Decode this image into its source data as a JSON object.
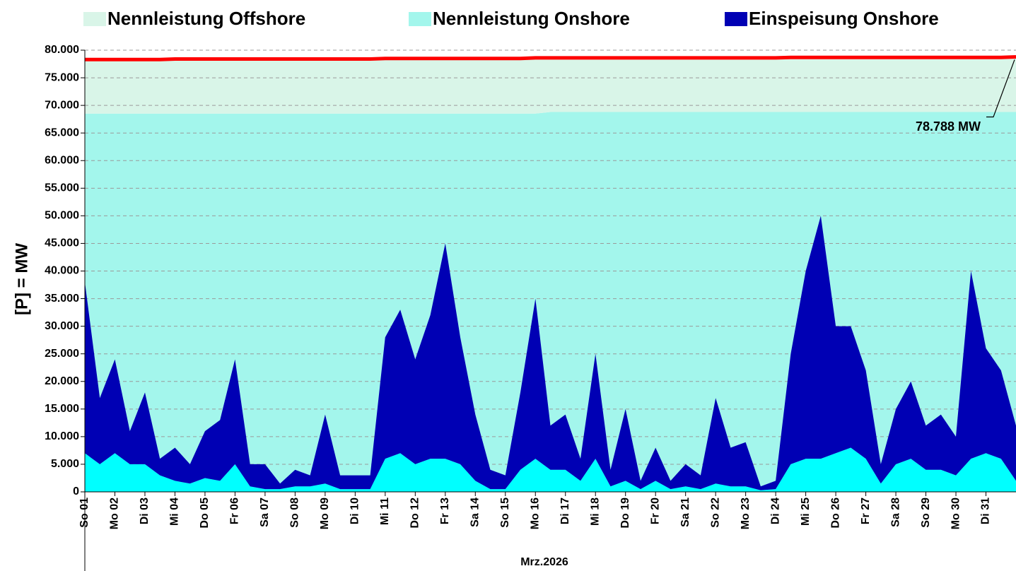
{
  "chart_data": {
    "type": "area",
    "y_label": "[P] = MW",
    "x_label": "Mrz.2026",
    "x": [
      0,
      0.5,
      1,
      1.5,
      2,
      2.5,
      3,
      3.5,
      4,
      4.5,
      5,
      5.5,
      6,
      6.5,
      7,
      7.5,
      8,
      8.5,
      9,
      9.5,
      10,
      10.5,
      11,
      11.5,
      12,
      12.5,
      13,
      13.5,
      14,
      14.5,
      15,
      15.5,
      16,
      16.5,
      17,
      17.5,
      18,
      18.5,
      19,
      19.5,
      20,
      20.5,
      21,
      21.5,
      22,
      22.5,
      23,
      23.5,
      24,
      24.5,
      25,
      25.5,
      26,
      26.5,
      27,
      27.5,
      28,
      28.5,
      29,
      29.5,
      30,
      30.5,
      31
    ],
    "xlim": [
      0,
      31
    ],
    "xticks": [
      {
        "value": 0,
        "label": "So 01"
      },
      {
        "value": 1,
        "label": "Mo 02"
      },
      {
        "value": 2,
        "label": "Di 03"
      },
      {
        "value": 3,
        "label": "Mi 04"
      },
      {
        "value": 4,
        "label": "Do 05"
      },
      {
        "value": 5,
        "label": "Fr 06"
      },
      {
        "value": 6,
        "label": "Sa 07"
      },
      {
        "value": 7,
        "label": "So 08"
      },
      {
        "value": 8,
        "label": "Mo 09"
      },
      {
        "value": 9,
        "label": "Di 10"
      },
      {
        "value": 10,
        "label": "Mi 11"
      },
      {
        "value": 11,
        "label": "Do 12"
      },
      {
        "value": 12,
        "label": "Fr 13"
      },
      {
        "value": 13,
        "label": "Sa 14"
      },
      {
        "value": 14,
        "label": "So 15"
      },
      {
        "value": 15,
        "label": "Mo 16"
      },
      {
        "value": 16,
        "label": "Di 17"
      },
      {
        "value": 17,
        "label": "Mi 18"
      },
      {
        "value": 18,
        "label": "Do 19"
      },
      {
        "value": 19,
        "label": "Fr 20"
      },
      {
        "value": 20,
        "label": "Sa 21"
      },
      {
        "value": 21,
        "label": "So 22"
      },
      {
        "value": 22,
        "label": "Mo 23"
      },
      {
        "value": 23,
        "label": "Di 24"
      },
      {
        "value": 24,
        "label": "Mi 25"
      },
      {
        "value": 25,
        "label": "Do 26"
      },
      {
        "value": 26,
        "label": "Fr 27"
      },
      {
        "value": 27,
        "label": "Sa 28"
      },
      {
        "value": 28,
        "label": "So 29"
      },
      {
        "value": 29,
        "label": "Mo 30"
      },
      {
        "value": 30,
        "label": "Di 31"
      }
    ],
    "ylim": [
      0,
      80000
    ],
    "yticks": [
      0,
      {
        "value": 5000,
        "label": "5.000"
      },
      {
        "value": 10000,
        "label": "10.000"
      },
      {
        "value": 15000,
        "label": "15.000"
      },
      {
        "value": 20000,
        "label": "20.000"
      },
      {
        "value": 25000,
        "label": "25.000"
      },
      {
        "value": 30000,
        "label": "30.000"
      },
      {
        "value": 35000,
        "label": "35.000"
      },
      {
        "value": 40000,
        "label": "40.000"
      },
      {
        "value": 45000,
        "label": "45.000"
      },
      {
        "value": 50000,
        "label": "50.000"
      },
      {
        "value": 55000,
        "label": "55.000"
      },
      {
        "value": 60000,
        "label": "60.000"
      },
      {
        "value": 65000,
        "label": "65.000"
      },
      {
        "value": 70000,
        "label": "70.000"
      },
      {
        "value": 75000,
        "label": "75.000"
      },
      {
        "value": 80000,
        "label": "80.000"
      }
    ],
    "grid": true,
    "series": [
      {
        "name": "Nennleistung Offshore",
        "color": "#d9f5e8",
        "stack": "capacity",
        "values": [
          9800,
          9800,
          9800,
          9800,
          9800,
          9800,
          9800,
          9800,
          9800,
          9800,
          9800,
          9800,
          9800,
          9800,
          9800,
          9800,
          9800,
          9800,
          9800,
          9800,
          9800,
          9800,
          9800,
          9800,
          9800,
          9800,
          9800,
          9800,
          9800,
          9800,
          9800,
          9900,
          9900,
          9900,
          9900,
          9900,
          9900,
          9900,
          9900,
          9900,
          9900,
          9900,
          9900,
          9900,
          9900,
          9900,
          9900,
          9900,
          9900,
          9900,
          9900,
          9900,
          9900,
          9900,
          9900,
          9900,
          9900,
          9900,
          9900,
          9900,
          9900,
          9900,
          9900
        ]
      },
      {
        "name": "Nennleistung Onshore",
        "color": "#a3f6ec",
        "stack": "capacity",
        "values": [
          68500,
          68500,
          68500,
          68500,
          68500,
          68500,
          68500,
          68500,
          68500,
          68500,
          68500,
          68500,
          68500,
          68500,
          68500,
          68500,
          68500,
          68500,
          68500,
          68500,
          68500,
          68500,
          68500,
          68500,
          68500,
          68500,
          68500,
          68500,
          68500,
          68500,
          68500,
          68800,
          68800,
          68800,
          68800,
          68800,
          68800,
          68800,
          68800,
          68800,
          68800,
          68800,
          68800,
          68800,
          68800,
          68800,
          68800,
          68800,
          68800,
          68800,
          68800,
          68800,
          68800,
          68800,
          68800,
          68800,
          68800,
          68800,
          68800,
          68800,
          68800,
          68800,
          68800
        ]
      },
      {
        "name": "Einspeisung Onshore",
        "color": "#0000b4",
        "stack": "feed",
        "values": [
          31000,
          12000,
          17000,
          6000,
          13000,
          3000,
          6000,
          3500,
          8500,
          11000,
          19000,
          4000,
          4500,
          1000,
          3000,
          2000,
          12500,
          2500,
          2500,
          2500,
          22000,
          26000,
          19000,
          26000,
          39000,
          23000,
          12000,
          3500,
          2500,
          14000,
          29000,
          8000,
          10000,
          4000,
          19000,
          3000,
          13000,
          1500,
          6000,
          1500,
          4000,
          2500,
          15500,
          7000,
          8000,
          700,
          1500,
          20000,
          34000,
          44000,
          23000,
          22000,
          16000,
          3500,
          10000,
          14000,
          8000,
          10000,
          7000,
          34000,
          19000,
          16000,
          10000
        ]
      },
      {
        "color": "#00ffff",
        "stack": "feed",
        "values": [
          7000,
          5000,
          7000,
          5000,
          5000,
          3000,
          2000,
          1500,
          2500,
          2000,
          5000,
          1000,
          500,
          500,
          1000,
          1000,
          1500,
          500,
          500,
          500,
          6000,
          7000,
          5000,
          6000,
          6000,
          5000,
          2000,
          500,
          500,
          4000,
          6000,
          4000,
          4000,
          2000,
          6000,
          1000,
          2000,
          500,
          2000,
          500,
          1000,
          500,
          1500,
          1000,
          1000,
          300,
          500,
          5000,
          6000,
          6000,
          7000,
          8000,
          6000,
          1500,
          5000,
          6000,
          4000,
          4000,
          3000,
          6000,
          7000,
          6000,
          2000
        ]
      },
      {
        "color": "#ff0000",
        "type": "line",
        "values": [
          78300,
          78300,
          78300,
          78300,
          78300,
          78300,
          78400,
          78400,
          78400,
          78400,
          78400,
          78400,
          78400,
          78400,
          78400,
          78400,
          78400,
          78400,
          78400,
          78400,
          78500,
          78500,
          78500,
          78500,
          78500,
          78500,
          78500,
          78500,
          78500,
          78500,
          78600,
          78600,
          78600,
          78600,
          78600,
          78600,
          78600,
          78600,
          78600,
          78600,
          78600,
          78600,
          78600,
          78600,
          78600,
          78600,
          78600,
          78700,
          78700,
          78700,
          78700,
          78700,
          78700,
          78700,
          78700,
          78700,
          78700,
          78700,
          78700,
          78700,
          78700,
          78700,
          78788
        ]
      }
    ],
    "annotations": [
      {
        "text": "78.788 MW",
        "x": 31,
        "y": 78788
      }
    ]
  }
}
